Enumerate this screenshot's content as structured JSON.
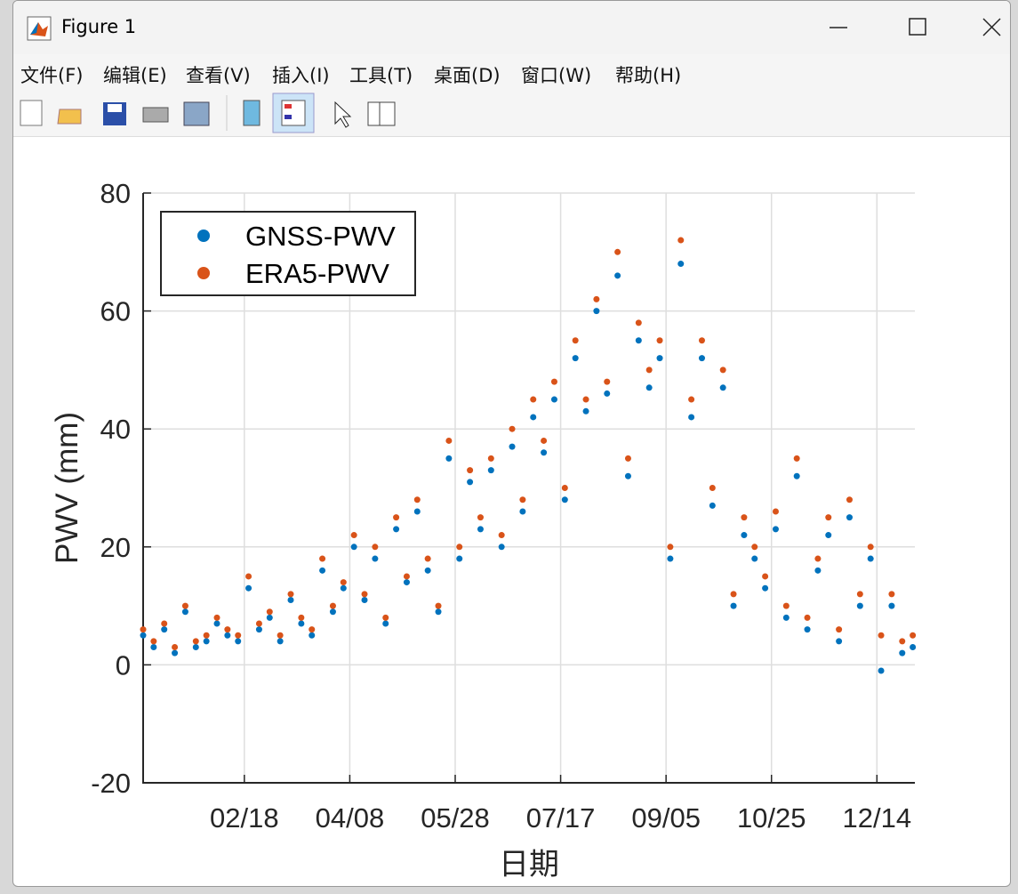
{
  "window": {
    "title": "Figure 1",
    "menu": [
      "文件(F)",
      "编辑(E)",
      "查看(V)",
      "插入(I)",
      "工具(T)",
      "桌面(D)",
      "窗口(W)",
      "帮助(H)"
    ]
  },
  "chart_data": {
    "type": "scatter",
    "xlabel": "日期",
    "ylabel": "PWV (mm)",
    "xlim": [
      1,
      367
    ],
    "ylim": [
      -20,
      80
    ],
    "xticks": [
      {
        "value": 49,
        "label": "02/18"
      },
      {
        "value": 99,
        "label": "04/08"
      },
      {
        "value": 149,
        "label": "05/28"
      },
      {
        "value": 199,
        "label": "07/17"
      },
      {
        "value": 249,
        "label": "09/05"
      },
      {
        "value": 299,
        "label": "10/25"
      },
      {
        "value": 349,
        "label": "12/14"
      }
    ],
    "yticks": [
      -20,
      0,
      20,
      40,
      60,
      80
    ],
    "grid": true,
    "legend": "northwest",
    "x": [
      1,
      6,
      11,
      16,
      21,
      26,
      31,
      36,
      41,
      46,
      51,
      56,
      61,
      66,
      71,
      76,
      81,
      86,
      91,
      96,
      101,
      106,
      111,
      116,
      121,
      126,
      131,
      136,
      141,
      146,
      151,
      156,
      161,
      166,
      171,
      176,
      181,
      186,
      191,
      196,
      201,
      206,
      211,
      216,
      221,
      226,
      231,
      236,
      241,
      246,
      251,
      256,
      261,
      266,
      271,
      276,
      281,
      286,
      291,
      296,
      301,
      306,
      311,
      316,
      321,
      326,
      331,
      336,
      341,
      346,
      351,
      356,
      361,
      366
    ],
    "series": [
      {
        "name": "GNSS-PWV",
        "color": "#0072BD",
        "values": [
          5,
          3,
          6,
          2,
          9,
          3,
          4,
          7,
          5,
          4,
          13,
          6,
          8,
          4,
          11,
          7,
          5,
          16,
          9,
          13,
          20,
          11,
          18,
          7,
          23,
          14,
          26,
          16,
          9,
          35,
          18,
          31,
          23,
          33,
          20,
          37,
          26,
          42,
          36,
          45,
          28,
          52,
          43,
          60,
          46,
          66,
          32,
          55,
          47,
          52,
          18,
          68,
          42,
          52,
          27,
          47,
          10,
          22,
          18,
          13,
          23,
          8,
          32,
          6,
          16,
          22,
          4,
          25,
          10,
          18,
          -1,
          10,
          2,
          3
        ]
      },
      {
        "name": "ERA5-PWV",
        "color": "#D95319",
        "values": [
          6,
          4,
          7,
          3,
          10,
          4,
          5,
          8,
          6,
          5,
          15,
          7,
          9,
          5,
          12,
          8,
          6,
          18,
          10,
          14,
          22,
          12,
          20,
          8,
          25,
          15,
          28,
          18,
          10,
          38,
          20,
          33,
          25,
          35,
          22,
          40,
          28,
          45,
          38,
          48,
          30,
          55,
          45,
          62,
          48,
          70,
          35,
          58,
          50,
          55,
          20,
          72,
          45,
          55,
          30,
          50,
          12,
          25,
          20,
          15,
          26,
          10,
          35,
          8,
          18,
          25,
          6,
          28,
          12,
          20,
          5,
          12,
          4,
          5
        ]
      }
    ]
  }
}
